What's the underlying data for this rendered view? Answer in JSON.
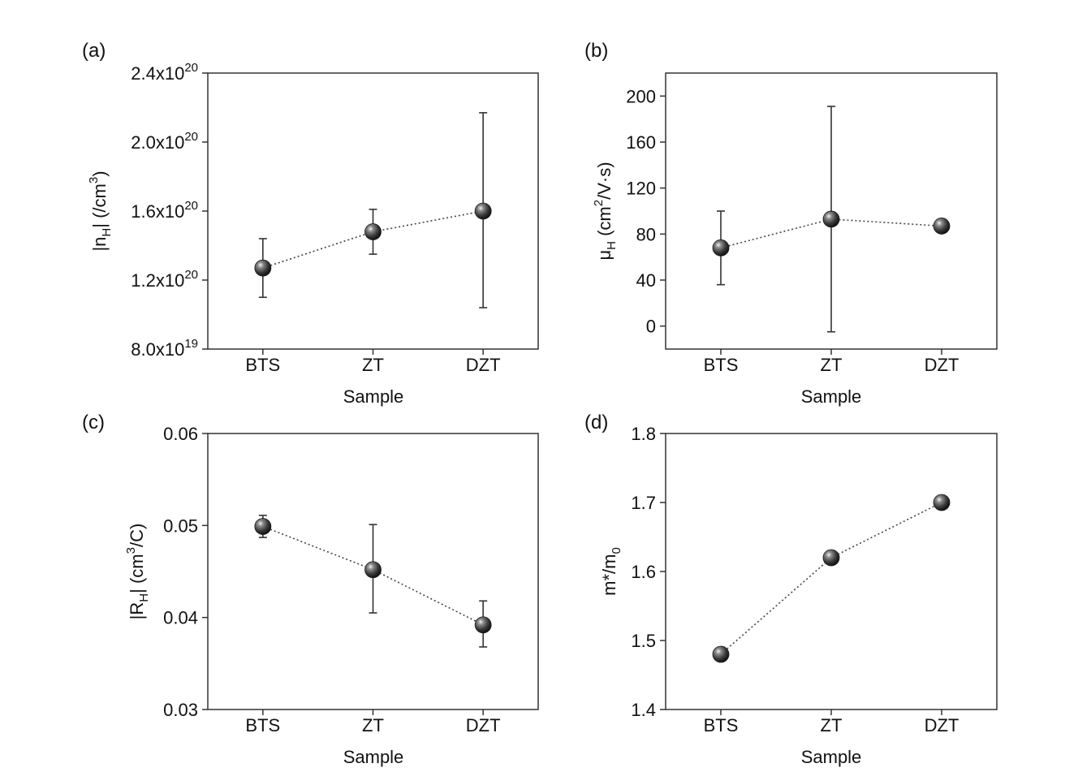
{
  "chart_data": [
    {
      "panel": "(a)",
      "type": "scatter",
      "categories": [
        "BTS",
        "ZT",
        "DZT"
      ],
      "xlabel": "Sample",
      "ylabel_parts": [
        "|n",
        "H",
        "| (/cm",
        "3",
        ")"
      ],
      "ylim": [
        8e+19,
        2.4e+20
      ],
      "yticks": [
        8e+19,
        1.2e+20,
        1.6e+20,
        2e+20,
        2.4e+20
      ],
      "ytick_labels": [
        {
          "mant": "8.0x10",
          "exp": "19"
        },
        {
          "mant": "1.2x10",
          "exp": "20"
        },
        {
          "mant": "1.6x10",
          "exp": "20"
        },
        {
          "mant": "2.0x10",
          "exp": "20"
        },
        {
          "mant": "2.4x10",
          "exp": "20"
        }
      ],
      "values": [
        1.27e+20,
        1.48e+20,
        1.6e+20
      ],
      "err_low": [
        1.1e+20,
        1.35e+20,
        1.04e+20
      ],
      "err_high": [
        1.44e+20,
        1.61e+20,
        2.17e+20
      ],
      "connected": true
    },
    {
      "panel": "(b)",
      "type": "scatter",
      "categories": [
        "BTS",
        "ZT",
        "DZT"
      ],
      "xlabel": "Sample",
      "ylabel_parts": [
        "μ",
        "H",
        " (cm",
        "2",
        "/V·s)"
      ],
      "ylim": [
        -20,
        220
      ],
      "yticks": [
        0,
        40,
        80,
        120,
        160,
        200
      ],
      "ytick_labels": [
        "0",
        "40",
        "80",
        "120",
        "160",
        "200"
      ],
      "values": [
        68,
        93,
        87
      ],
      "err_low": [
        36,
        -5,
        null
      ],
      "err_high": [
        100,
        191,
        null
      ],
      "connected": true
    },
    {
      "panel": "(c)",
      "type": "scatter",
      "categories": [
        "BTS",
        "ZT",
        "DZT"
      ],
      "xlabel": "Sample",
      "ylabel_parts": [
        "|R",
        "H",
        "| (cm",
        "3",
        "/C)"
      ],
      "ylim": [
        0.03,
        0.06
      ],
      "yticks": [
        0.03,
        0.04,
        0.05,
        0.06
      ],
      "ytick_labels": [
        "0.03",
        "0.04",
        "0.05",
        "0.06"
      ],
      "values": [
        0.0499,
        0.0452,
        0.0392
      ],
      "err_low": [
        0.0487,
        0.0405,
        0.0368
      ],
      "err_high": [
        0.0511,
        0.0501,
        0.0418
      ],
      "connected": true
    },
    {
      "panel": "(d)",
      "type": "scatter",
      "categories": [
        "BTS",
        "ZT",
        "DZT"
      ],
      "xlabel": "Sample",
      "ylabel_parts": [
        "m*/m",
        "0",
        "",
        "",
        ""
      ],
      "ylim": [
        1.4,
        1.8
      ],
      "yticks": [
        1.4,
        1.5,
        1.6,
        1.7,
        1.8
      ],
      "ytick_labels": [
        "1.4",
        "1.5",
        "1.6",
        "1.7",
        "1.8"
      ],
      "values": [
        1.48,
        1.62,
        1.7
      ],
      "err_low": [
        null,
        null,
        null
      ],
      "err_high": [
        null,
        null,
        null
      ],
      "connected": true
    }
  ],
  "colors": {
    "marker": "#3a3a3a",
    "marker_highlight": "#e8e8e8",
    "axis": "#333333",
    "errorbar": "#333333",
    "connector": "#444444"
  }
}
